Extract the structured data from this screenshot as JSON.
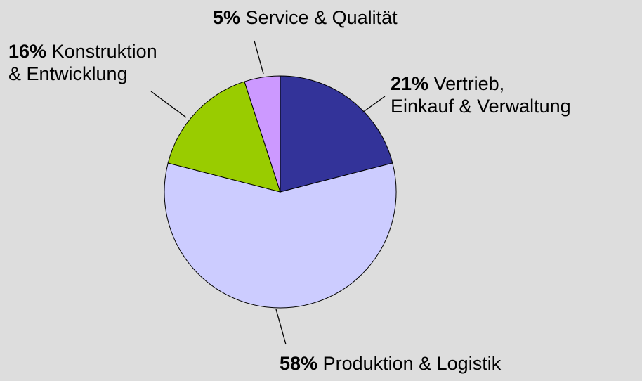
{
  "chart_data": {
    "type": "pie",
    "categories": [
      "Vertrieb,\nEinkauf & Verwaltung",
      "Produktion & Logistik",
      "Konstruktion\n& Entwicklung",
      "Service & Qualität"
    ],
    "values": [
      21,
      58,
      16,
      5
    ],
    "value_labels": [
      "21%",
      "58%",
      "16%",
      "5%"
    ],
    "colors": [
      "#333399",
      "#ccccff",
      "#99cc00",
      "#cc99ff"
    ]
  }
}
